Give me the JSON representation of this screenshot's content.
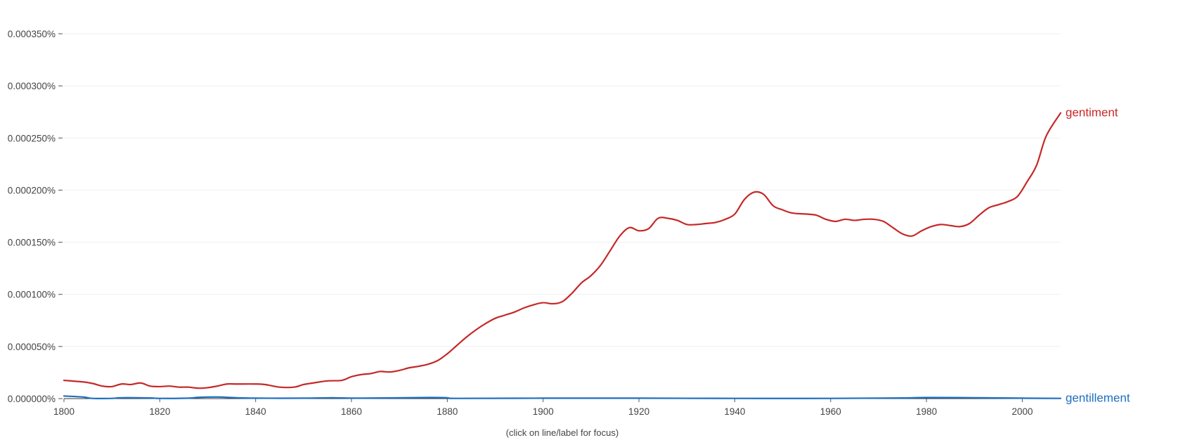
{
  "chart_data": {
    "type": "line",
    "xlim": [
      1800,
      2008
    ],
    "ylim": [
      0,
      0.00035
    ],
    "x_ticks": [
      1800,
      1820,
      1840,
      1860,
      1880,
      1900,
      1920,
      1940,
      1960,
      1980,
      2000
    ],
    "y_ticks": [
      0,
      5e-05,
      0.0001,
      0.00015,
      0.0002,
      0.00025,
      0.0003,
      0.00035
    ],
    "y_tick_labels": [
      "0.000000%",
      "0.000050%",
      "0.000100%",
      "0.000150%",
      "0.000200%",
      "0.000250%",
      "0.000300%",
      "0.000350%"
    ],
    "grid": true,
    "legend": "labels at line ends (right)",
    "caption": "(click on line/label for focus)",
    "series": [
      {
        "name": "gentiment",
        "color": "#c62828",
        "points": [
          [
            1800,
            1.75e-05
          ],
          [
            1804,
            1.6e-05
          ],
          [
            1806,
            1.45e-05
          ],
          [
            1808,
            1.2e-05
          ],
          [
            1810,
            1.15e-05
          ],
          [
            1812,
            1.4e-05
          ],
          [
            1814,
            1.35e-05
          ],
          [
            1816,
            1.5e-05
          ],
          [
            1818,
            1.2e-05
          ],
          [
            1820,
            1.15e-05
          ],
          [
            1822,
            1.2e-05
          ],
          [
            1824,
            1.1e-05
          ],
          [
            1826,
            1.1e-05
          ],
          [
            1828,
            1e-05
          ],
          [
            1830,
            1.05e-05
          ],
          [
            1832,
            1.2e-05
          ],
          [
            1834,
            1.4e-05
          ],
          [
            1836,
            1.4e-05
          ],
          [
            1840,
            1.4e-05
          ],
          [
            1842,
            1.35e-05
          ],
          [
            1845,
            1.1e-05
          ],
          [
            1848,
            1.1e-05
          ],
          [
            1850,
            1.35e-05
          ],
          [
            1852,
            1.5e-05
          ],
          [
            1855,
            1.7e-05
          ],
          [
            1858,
            1.75e-05
          ],
          [
            1860,
            2.1e-05
          ],
          [
            1862,
            2.3e-05
          ],
          [
            1864,
            2.4e-05
          ],
          [
            1866,
            2.6e-05
          ],
          [
            1868,
            2.55e-05
          ],
          [
            1870,
            2.7e-05
          ],
          [
            1872,
            2.95e-05
          ],
          [
            1874,
            3.1e-05
          ],
          [
            1876,
            3.3e-05
          ],
          [
            1878,
            3.65e-05
          ],
          [
            1880,
            4.3e-05
          ],
          [
            1882,
            5.1e-05
          ],
          [
            1884,
            5.9e-05
          ],
          [
            1886,
            6.6e-05
          ],
          [
            1888,
            7.2e-05
          ],
          [
            1890,
            7.7e-05
          ],
          [
            1892,
            8e-05
          ],
          [
            1894,
            8.3e-05
          ],
          [
            1896,
            8.7e-05
          ],
          [
            1898,
            9e-05
          ],
          [
            1900,
            9.2e-05
          ],
          [
            1902,
            9.1e-05
          ],
          [
            1904,
            9.3e-05
          ],
          [
            1906,
            0.000101
          ],
          [
            1908,
            0.000111
          ],
          [
            1910,
            0.000118
          ],
          [
            1912,
            0.000128
          ],
          [
            1914,
            0.000142
          ],
          [
            1916,
            0.000156
          ],
          [
            1918,
            0.000164
          ],
          [
            1920,
            0.000161
          ],
          [
            1922,
            0.000163
          ],
          [
            1924,
            0.000173
          ],
          [
            1926,
            0.000173
          ],
          [
            1928,
            0.000171
          ],
          [
            1930,
            0.000167
          ],
          [
            1932,
            0.000167
          ],
          [
            1934,
            0.000168
          ],
          [
            1936,
            0.000169
          ],
          [
            1938,
            0.000172
          ],
          [
            1940,
            0.000177
          ],
          [
            1942,
            0.000191
          ],
          [
            1944,
            0.000198
          ],
          [
            1946,
            0.000196
          ],
          [
            1948,
            0.000185
          ],
          [
            1950,
            0.000181
          ],
          [
            1952,
            0.000178
          ],
          [
            1955,
            0.000177
          ],
          [
            1957,
            0.000176
          ],
          [
            1959,
            0.000172
          ],
          [
            1961,
            0.00017
          ],
          [
            1963,
            0.000172
          ],
          [
            1965,
            0.000171
          ],
          [
            1967,
            0.000172
          ],
          [
            1969,
            0.000172
          ],
          [
            1971,
            0.00017
          ],
          [
            1973,
            0.000164
          ],
          [
            1975,
            0.000158
          ],
          [
            1977,
            0.000156
          ],
          [
            1979,
            0.000161
          ],
          [
            1981,
            0.000165
          ],
          [
            1983,
            0.000167
          ],
          [
            1985,
            0.000166
          ],
          [
            1987,
            0.000165
          ],
          [
            1989,
            0.000168
          ],
          [
            1991,
            0.000176
          ],
          [
            1993,
            0.000183
          ],
          [
            1995,
            0.000186
          ],
          [
            1997,
            0.000189
          ],
          [
            1999,
            0.000194
          ],
          [
            2001,
            0.000208
          ],
          [
            2003,
            0.000224
          ],
          [
            2005,
            0.000252
          ],
          [
            2008,
            0.000274
          ]
        ]
      },
      {
        "name": "gentillement",
        "color": "#1e6fbf",
        "points": [
          [
            1800,
            2.5e-06
          ],
          [
            1804,
            1.5e-06
          ],
          [
            1806,
            2e-07
          ],
          [
            1810,
            2e-07
          ],
          [
            1812,
            8e-07
          ],
          [
            1818,
            6e-07
          ],
          [
            1820,
            2e-07
          ],
          [
            1826,
            4e-07
          ],
          [
            1828,
            1.2e-06
          ],
          [
            1832,
            1.5e-06
          ],
          [
            1836,
            8e-07
          ],
          [
            1840,
            4e-07
          ],
          [
            1850,
            4e-07
          ],
          [
            1856,
            8e-07
          ],
          [
            1862,
            4e-07
          ],
          [
            1876,
            1e-06
          ],
          [
            1880,
            8e-07
          ],
          [
            1882,
            2e-07
          ],
          [
            1900,
            4e-07
          ],
          [
            1920,
            4e-07
          ],
          [
            1940,
            2e-07
          ],
          [
            1960,
            2e-07
          ],
          [
            1975,
            6e-07
          ],
          [
            1980,
            1e-06
          ],
          [
            1990,
            8e-07
          ],
          [
            2000,
            4e-07
          ],
          [
            2008,
            2e-07
          ]
        ]
      }
    ]
  }
}
